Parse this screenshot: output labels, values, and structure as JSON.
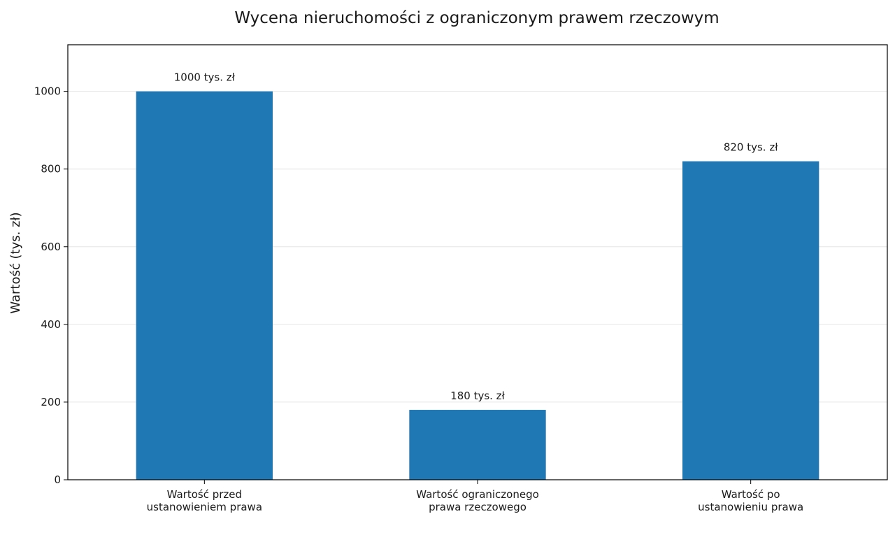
{
  "chart_data": {
    "type": "bar",
    "title": "Wycena nieruchomości z ograniczonym prawem rzeczowym",
    "xlabel": "",
    "ylabel": "Wartość (tys. zł)",
    "categories": [
      [
        "Wartość przed",
        "ustanowieniem prawa"
      ],
      [
        "Wartość ograniczonego",
        "prawa rzeczowego"
      ],
      [
        "Wartość po",
        "ustanowieniu prawa"
      ]
    ],
    "values": [
      1000,
      180,
      820
    ],
    "data_labels": [
      "1000 tys. zł",
      "180 tys. zł",
      "820 tys. zł"
    ],
    "ylim": [
      0,
      1120
    ],
    "yticks": [
      0,
      200,
      400,
      600,
      800,
      1000
    ],
    "grid": true,
    "bar_color": "#1f77b4",
    "grid_color": "#e6e6e6"
  }
}
